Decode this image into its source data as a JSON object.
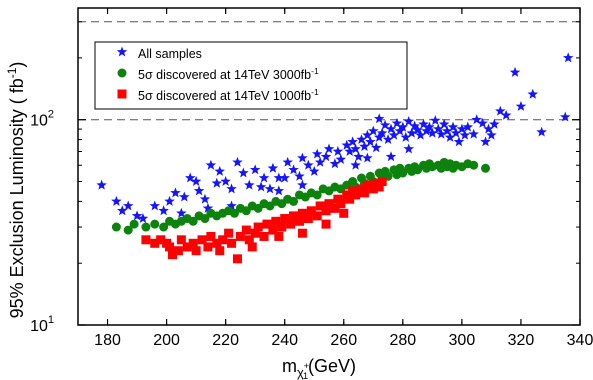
{
  "chart_data": {
    "type": "scatter",
    "title": "",
    "xlabel": {
      "base": "m",
      "sub": "χ",
      "subsup": "+",
      "subsub": "1",
      "suffix": "(GeV)"
    },
    "ylabel": {
      "main": "95% Exclusion Luminosity ( fb",
      "sup": "-1",
      "close": ")"
    },
    "xlim": [
      170,
      340
    ],
    "ylim": [
      10,
      350
    ],
    "yscale": "log",
    "xticks": [
      180,
      200,
      220,
      240,
      260,
      280,
      300,
      320,
      340
    ],
    "ytick_labels": [
      {
        "value": 10,
        "base": "10",
        "exp": "1"
      },
      {
        "value": 100,
        "base": "10",
        "exp": "2"
      }
    ],
    "reference_lines": [
      100,
      300
    ],
    "legend_position": "top-left",
    "colors": {
      "all": "#1414ff",
      "s3000": "#0d820d",
      "s1000": "#ff0000",
      "frame": "#000000",
      "refline": "#555555"
    },
    "series": [
      {
        "name": "All samples",
        "marker": "star",
        "color": "#1414ff",
        "points": [
          [
            178,
            48
          ],
          [
            183,
            40
          ],
          [
            185,
            36
          ],
          [
            187,
            38
          ],
          [
            190,
            34
          ],
          [
            192,
            33
          ],
          [
            196,
            38
          ],
          [
            199,
            36
          ],
          [
            201,
            40
          ],
          [
            203,
            44
          ],
          [
            205,
            35
          ],
          [
            206,
            42
          ],
          [
            208,
            52
          ],
          [
            210,
            50
          ],
          [
            211,
            45
          ],
          [
            213,
            41
          ],
          [
            215,
            60
          ],
          [
            217,
            49
          ],
          [
            218,
            56
          ],
          [
            220,
            50
          ],
          [
            222,
            38
          ],
          [
            224,
            62
          ],
          [
            226,
            55
          ],
          [
            228,
            48
          ],
          [
            230,
            57
          ],
          [
            232,
            47
          ],
          [
            233,
            52
          ],
          [
            235,
            46
          ],
          [
            236,
            58
          ],
          [
            238,
            52
          ],
          [
            240,
            52
          ],
          [
            241,
            62
          ],
          [
            243,
            57
          ],
          [
            245,
            53
          ],
          [
            246,
            65
          ],
          [
            248,
            60
          ],
          [
            250,
            56
          ],
          [
            251,
            68
          ],
          [
            252,
            62
          ],
          [
            254,
            66
          ],
          [
            255,
            72
          ],
          [
            257,
            61
          ],
          [
            258,
            70
          ],
          [
            259,
            64
          ],
          [
            261,
            75
          ],
          [
            262,
            70
          ],
          [
            263,
            78
          ],
          [
            264,
            72
          ],
          [
            265,
            66
          ],
          [
            266,
            80
          ],
          [
            267,
            74
          ],
          [
            268,
            84
          ],
          [
            269,
            78
          ],
          [
            270,
            88
          ],
          [
            271,
            73
          ],
          [
            272,
            101
          ],
          [
            272,
            82
          ],
          [
            273,
            86
          ],
          [
            274,
            94
          ],
          [
            275,
            80
          ],
          [
            276,
            90
          ],
          [
            277,
            84
          ],
          [
            278,
            96
          ],
          [
            279,
            88
          ],
          [
            280,
            92
          ],
          [
            281,
            82
          ],
          [
            282,
            98
          ],
          [
            283,
            86
          ],
          [
            284,
            93
          ],
          [
            285,
            89
          ],
          [
            286,
            84
          ],
          [
            287,
            95
          ],
          [
            288,
            88
          ],
          [
            289,
            92
          ],
          [
            290,
            86
          ],
          [
            291,
            99
          ],
          [
            292,
            90
          ],
          [
            293,
            85
          ],
          [
            294,
            95
          ],
          [
            295,
            88
          ],
          [
            296,
            82
          ],
          [
            297,
            92
          ],
          [
            298,
            86
          ],
          [
            299,
            78
          ],
          [
            300,
            90
          ],
          [
            301,
            84
          ],
          [
            302,
            92
          ],
          [
            304,
            85
          ],
          [
            305,
            100
          ],
          [
            307,
            96
          ],
          [
            308,
            78
          ],
          [
            309,
            90
          ],
          [
            310,
            84
          ],
          [
            311,
            95
          ],
          [
            313,
            110
          ],
          [
            315,
            105
          ],
          [
            318,
            170
          ],
          [
            320,
            116
          ],
          [
            324,
            133
          ],
          [
            327,
            87
          ],
          [
            335,
            103
          ],
          [
            336,
            200
          ],
          [
            276,
            66
          ],
          [
            264,
            60
          ],
          [
            282,
            72
          ],
          [
            246,
            48
          ],
          [
            222,
            46
          ],
          [
            214,
            37
          ],
          [
            238,
            45
          ],
          [
            268,
            65
          ]
        ]
      },
      {
        "name": "5σ discovered at 14TeV 3000fb-1",
        "marker": "circle",
        "color": "#0d820d",
        "points": [
          [
            183,
            30
          ],
          [
            187,
            29
          ],
          [
            189,
            31
          ],
          [
            193,
            30
          ],
          [
            196,
            31
          ],
          [
            199,
            30
          ],
          [
            201,
            32
          ],
          [
            203,
            31
          ],
          [
            205,
            32
          ],
          [
            207,
            33
          ],
          [
            209,
            32
          ],
          [
            211,
            34
          ],
          [
            213,
            33
          ],
          [
            215,
            35
          ],
          [
            217,
            34
          ],
          [
            219,
            35
          ],
          [
            221,
            36
          ],
          [
            223,
            35
          ],
          [
            225,
            37
          ],
          [
            227,
            36
          ],
          [
            229,
            38
          ],
          [
            231,
            37
          ],
          [
            233,
            39
          ],
          [
            235,
            38
          ],
          [
            237,
            40
          ],
          [
            239,
            39
          ],
          [
            241,
            41
          ],
          [
            243,
            40
          ],
          [
            245,
            43
          ],
          [
            247,
            42
          ],
          [
            249,
            44
          ],
          [
            251,
            43
          ],
          [
            253,
            46
          ],
          [
            255,
            45
          ],
          [
            257,
            47
          ],
          [
            259,
            46
          ],
          [
            261,
            48
          ],
          [
            263,
            50
          ],
          [
            264,
            47
          ],
          [
            266,
            52
          ],
          [
            267,
            49
          ],
          [
            269,
            53
          ],
          [
            270,
            50
          ],
          [
            272,
            55
          ],
          [
            273,
            52
          ],
          [
            274,
            56
          ],
          [
            275,
            53
          ],
          [
            277,
            57
          ],
          [
            278,
            54
          ],
          [
            279,
            58
          ],
          [
            280,
            55
          ],
          [
            282,
            58
          ],
          [
            283,
            56
          ],
          [
            284,
            59
          ],
          [
            285,
            57
          ],
          [
            287,
            60
          ],
          [
            288,
            58
          ],
          [
            289,
            61
          ],
          [
            290,
            59
          ],
          [
            292,
            60
          ],
          [
            293,
            58
          ],
          [
            294,
            62
          ],
          [
            295,
            59
          ],
          [
            296,
            61
          ],
          [
            297,
            58
          ],
          [
            298,
            60
          ],
          [
            300,
            59
          ],
          [
            302,
            61
          ],
          [
            304,
            60
          ],
          [
            308,
            58
          ]
        ]
      },
      {
        "name": "5σ discovered at 14TeV 1000fb-1",
        "marker": "square",
        "color": "#ff0000",
        "points": [
          [
            193,
            26
          ],
          [
            196,
            25
          ],
          [
            198,
            26
          ],
          [
            200,
            25
          ],
          [
            201,
            24
          ],
          [
            202,
            22
          ],
          [
            204,
            23
          ],
          [
            205,
            26
          ],
          [
            207,
            24
          ],
          [
            209,
            25
          ],
          [
            210,
            23
          ],
          [
            212,
            26
          ],
          [
            214,
            24
          ],
          [
            215,
            27
          ],
          [
            217,
            25
          ],
          [
            218,
            23
          ],
          [
            219,
            26
          ],
          [
            221,
            28
          ],
          [
            222,
            25
          ],
          [
            224,
            21
          ],
          [
            225,
            27
          ],
          [
            227,
            29
          ],
          [
            228,
            26
          ],
          [
            230,
            28
          ],
          [
            231,
            30
          ],
          [
            233,
            27
          ],
          [
            234,
            31
          ],
          [
            236,
            29
          ],
          [
            237,
            32
          ],
          [
            239,
            30
          ],
          [
            240,
            33
          ],
          [
            242,
            31
          ],
          [
            243,
            34
          ],
          [
            245,
            32
          ],
          [
            246,
            35
          ],
          [
            248,
            33
          ],
          [
            249,
            36
          ],
          [
            251,
            34
          ],
          [
            252,
            38
          ],
          [
            254,
            36
          ],
          [
            255,
            39
          ],
          [
            257,
            37
          ],
          [
            258,
            41
          ],
          [
            259,
            39
          ],
          [
            261,
            43
          ],
          [
            262,
            41
          ],
          [
            263,
            45
          ],
          [
            264,
            43
          ],
          [
            266,
            46
          ],
          [
            267,
            44
          ],
          [
            268,
            48
          ],
          [
            270,
            46
          ],
          [
            271,
            49
          ],
          [
            272,
            47
          ],
          [
            273,
            50
          ],
          [
            246,
            28
          ],
          [
            238,
            27
          ],
          [
            229,
            24
          ],
          [
            254,
            31
          ],
          [
            260,
            35
          ]
        ]
      }
    ]
  }
}
